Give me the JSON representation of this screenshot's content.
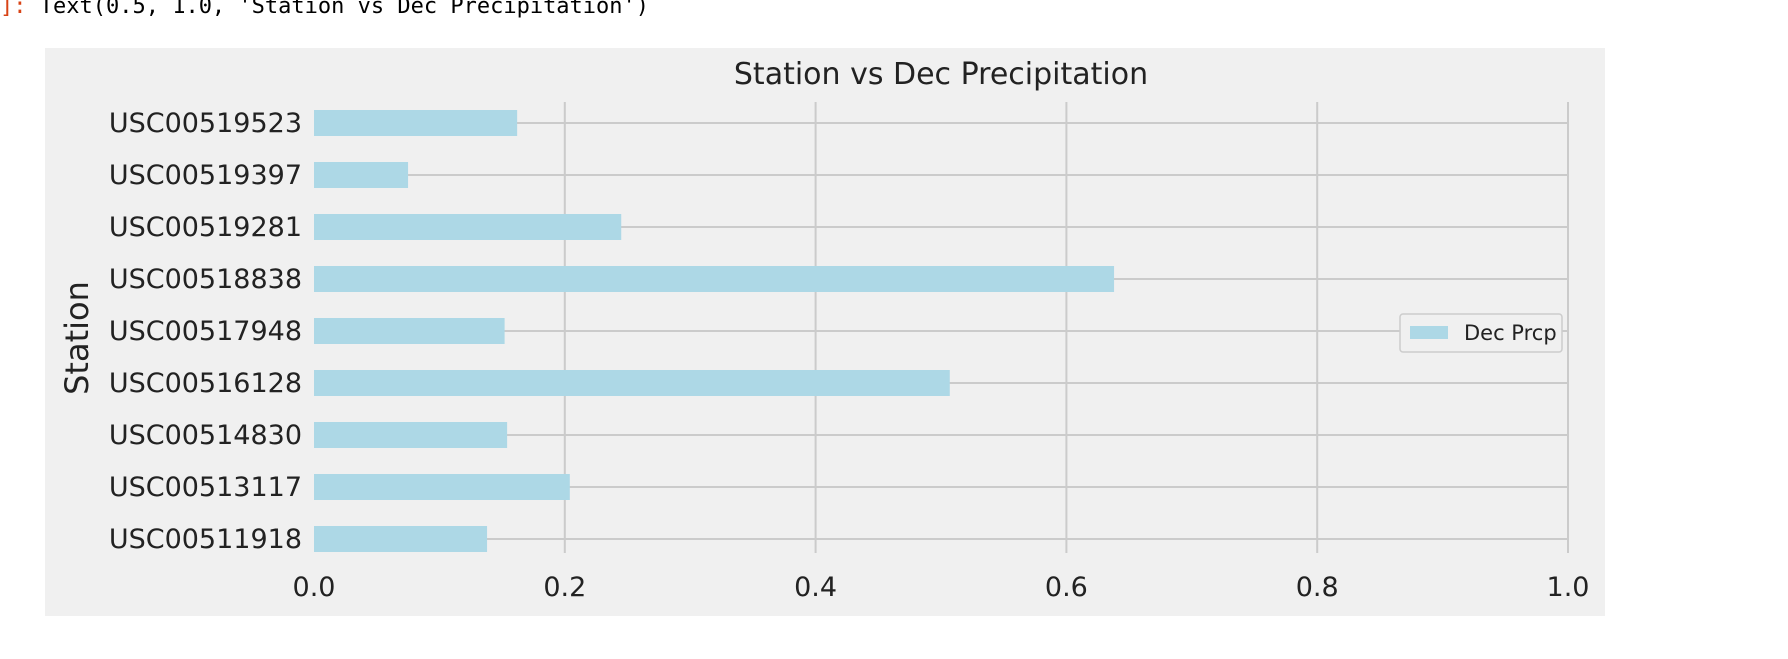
{
  "output_prompt": "]:",
  "output_text": "Text(0.5, 1.0, 'Station vs Dec Precipitation')",
  "chart_data": {
    "type": "bar",
    "orientation": "horizontal",
    "title": "Station vs Dec Precipitation",
    "ylabel": "Station",
    "xlabel": "",
    "categories": [
      "USC00511918",
      "USC00513117",
      "USC00514830",
      "USC00516128",
      "USC00517948",
      "USC00518838",
      "USC00519281",
      "USC00519397",
      "USC00519523"
    ],
    "series": [
      {
        "name": "Dec Prcp",
        "values": [
          0.138,
          0.204,
          0.154,
          0.507,
          0.152,
          0.638,
          0.245,
          0.075,
          0.162
        ]
      }
    ],
    "xlim": [
      0.0,
      1.0
    ],
    "xticks": [
      "0.0",
      "0.2",
      "0.4",
      "0.6",
      "0.8",
      "1.0"
    ],
    "grid": true,
    "legend_position": "center-right",
    "colors": {
      "bar": "#add8e6",
      "axes_bg": "#f0f0f0",
      "grid": "#cbcbcb",
      "text": "#222222"
    }
  }
}
